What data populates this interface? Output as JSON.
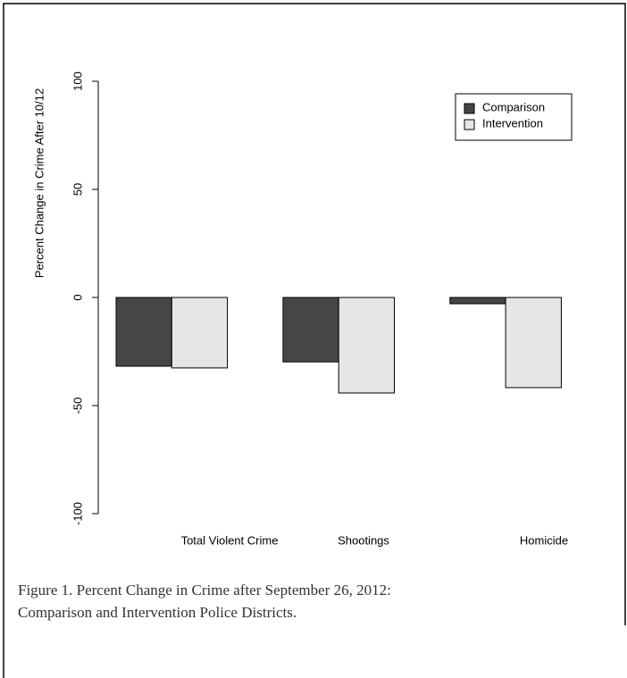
{
  "chart_data": {
    "type": "bar",
    "y_label": "Percent Change in Crime After 10/12",
    "categories": [
      "Total Violent Crime",
      "Shootings",
      "Homicide"
    ],
    "series": [
      {
        "name": "Comparison",
        "color": "#464646",
        "values": [
          -31.8,
          -29.8,
          -2.9
        ]
      },
      {
        "name": "Intervention",
        "color": "#e6e6e6",
        "values": [
          -32.6,
          -44.2,
          -41.7
        ]
      }
    ],
    "ylim": [
      -100,
      100
    ],
    "yticks": [
      -100,
      -50,
      0,
      50,
      100
    ],
    "legend": "top-right",
    "caption": [
      "Figure 1.  Percent Change in Crime after September 26, 2012:",
      "Comparison and Intervention Police Districts."
    ]
  }
}
